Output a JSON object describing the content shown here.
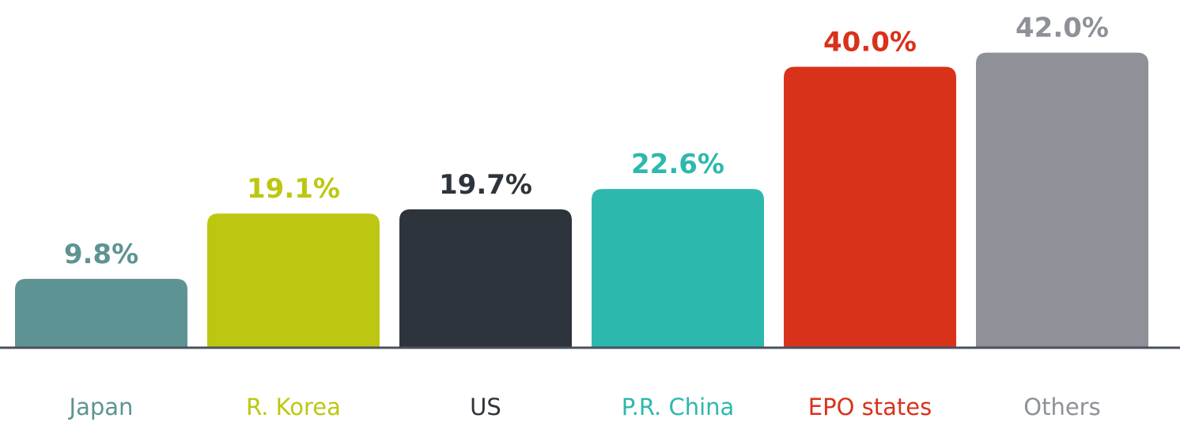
{
  "chart_data": {
    "type": "bar",
    "categories": [
      "Japan",
      "R. Korea",
      "US",
      "P.R. China",
      "EPO states",
      "Others"
    ],
    "values": [
      9.8,
      19.1,
      19.7,
      22.6,
      40.0,
      42.0
    ],
    "value_labels": [
      "9.8%",
      "19.1%",
      "19.7%",
      "22.6%",
      "40.0%",
      "42.0%"
    ],
    "colors": [
      "#5e9393",
      "#bdc711",
      "#2e343b",
      "#2db8ae",
      "#d9321a",
      "#8e9198"
    ],
    "ylim": [
      0,
      45
    ]
  }
}
